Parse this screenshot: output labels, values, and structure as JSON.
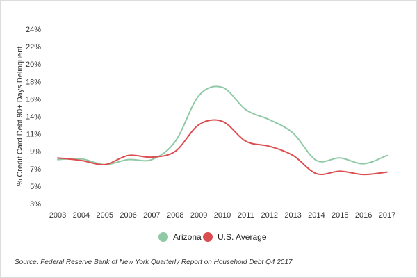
{
  "chart_data": {
    "type": "line",
    "x": [
      "2003",
      "2004",
      "2005",
      "2006",
      "2007",
      "2008",
      "2009",
      "2010",
      "2011",
      "2012",
      "2013",
      "2014",
      "2015",
      "2016",
      "2017"
    ],
    "series": [
      {
        "name": "Arizona",
        "color": "#8fc9a6",
        "values": [
          8.3,
          8.4,
          7.7,
          8.3,
          8.3,
          10.5,
          16.0,
          17.0,
          14.3,
          13.1,
          11.5,
          8.2,
          8.5,
          7.8,
          8.8
        ]
      },
      {
        "name": "U.S. Average",
        "color": "#dc4d50",
        "values": [
          8.5,
          8.2,
          7.7,
          8.8,
          8.6,
          9.3,
          12.5,
          12.9,
          10.5,
          9.9,
          8.8,
          6.6,
          6.9,
          6.5,
          6.8
        ]
      }
    ],
    "ylabel": "% Credit Card Debt 90+ Days Delinquent",
    "y_ticks": [
      "24%",
      "22%",
      "20%",
      "18%",
      "16%",
      "14%",
      "11%",
      "9%",
      "7%",
      "5%",
      "3%"
    ],
    "ylim": [
      3,
      24
    ],
    "grid": false,
    "legend_position": "bottom"
  },
  "source": "Source: Federal Reserve Bank of New York Quarterly Report on Household Debt Q4 2017"
}
